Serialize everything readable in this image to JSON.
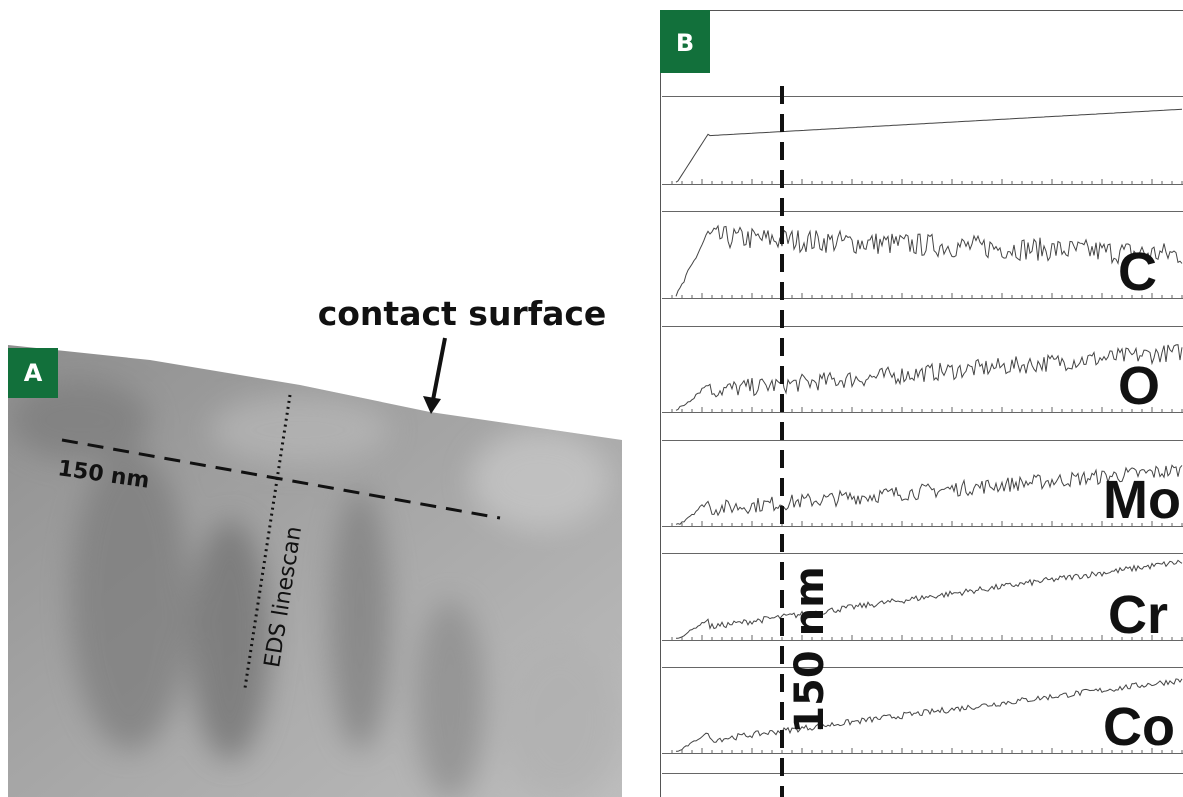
{
  "panel_a": {
    "label": "A",
    "annotation": "contact surface",
    "scale_label": "150 nm",
    "linescan_label": "EDS linescan"
  },
  "panel_b": {
    "label": "B",
    "scale_label": "150 nm",
    "elements": [
      "C",
      "O",
      "Mo",
      "Cr",
      "Co"
    ]
  }
}
